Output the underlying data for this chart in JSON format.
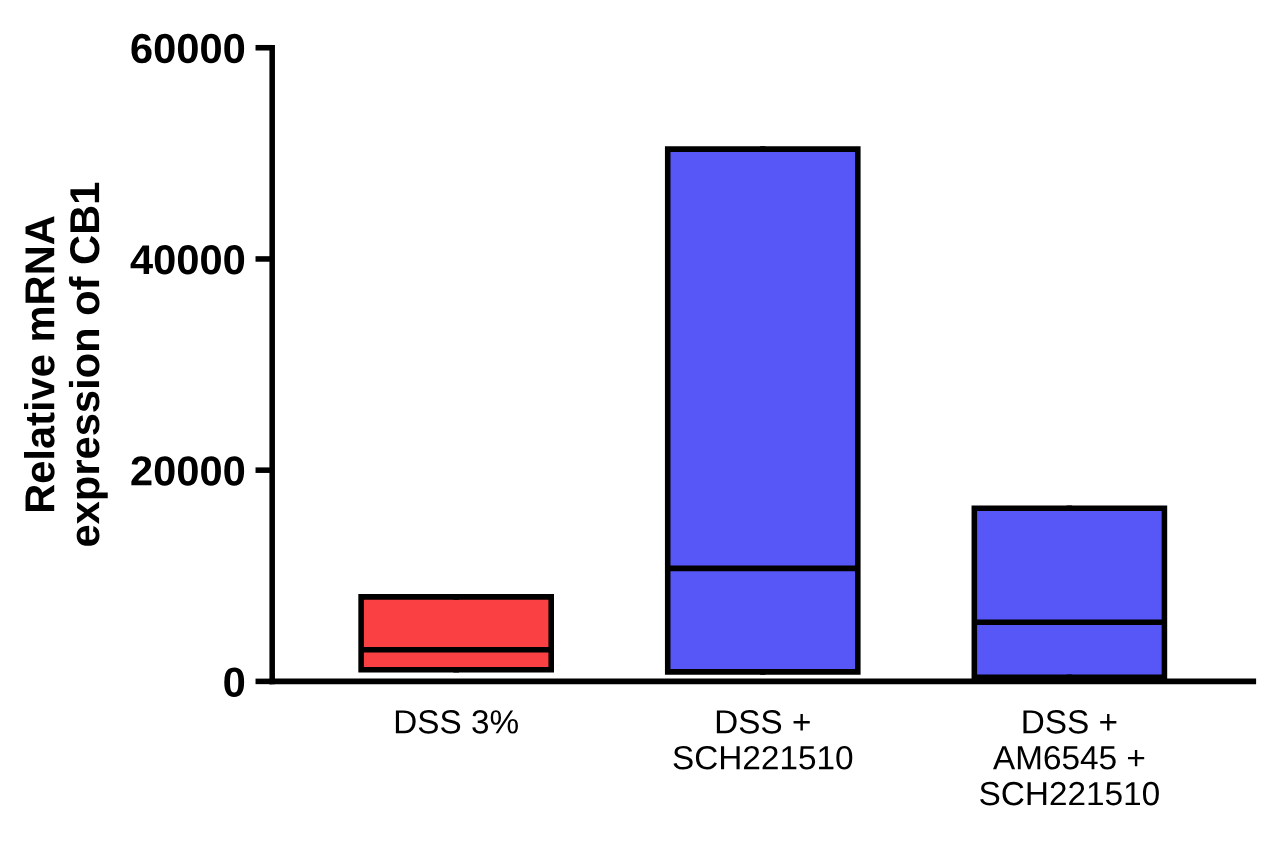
{
  "chart_data": {
    "type": "box",
    "ylabel": "Relative mRNA\nexpression of CB1",
    "categories": [
      "DSS 3%",
      "DSS +\nSCH221510",
      "DSS +\nAM6545 +\nSCH221510"
    ],
    "boxes": [
      {
        "low": 1100,
        "q1": 1100,
        "median": 3000,
        "q3": 8000,
        "high": 8000
      },
      {
        "low": 900,
        "q1": 900,
        "median": 10700,
        "q3": 50400,
        "high": 50400
      },
      {
        "low": 400,
        "q1": 400,
        "median": 5600,
        "q3": 16400,
        "high": 16400
      }
    ],
    "colors": [
      "#fa4043",
      "#5757f7",
      "#5757f7"
    ],
    "ylim": [
      0,
      60000
    ],
    "yticks": [
      0,
      20000,
      40000,
      60000
    ],
    "grid": false,
    "legend": false
  }
}
